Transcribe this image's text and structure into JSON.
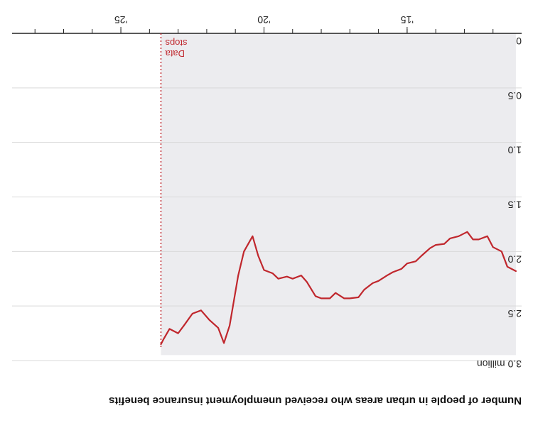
{
  "chart_data": {
    "type": "area",
    "orientation": "rotated-180",
    "title": "Number of people in urban areas who received unemployment insurance benefits",
    "ylabel": "",
    "xlabel": "",
    "y_unit_label": "3.0 million",
    "y_ticks": [
      "0",
      "0.5",
      "1.0",
      "1.5",
      "2.0",
      "2.5"
    ],
    "ylim": [
      0,
      3.0
    ],
    "x_ticks": [
      {
        "label": "'15",
        "year": 2015
      },
      {
        "label": "'20",
        "year": 2020
      },
      {
        "label": "'25",
        "year": 2025
      }
    ],
    "xlim": [
      2011.0,
      2028.8
    ],
    "grid": true,
    "shaded_region": {
      "from": 2011.2,
      "to": 2023.6
    },
    "data_stop": {
      "year": 2023.6,
      "label": "Data stops"
    },
    "series": [
      {
        "values": [
          [
            2011.2,
            2.18
          ],
          [
            2011.5,
            2.14
          ],
          [
            2011.7,
            2.0
          ],
          [
            2012.0,
            1.96
          ],
          [
            2012.2,
            1.86
          ],
          [
            2012.5,
            1.89
          ],
          [
            2012.7,
            1.89
          ],
          [
            2012.9,
            1.82
          ],
          [
            2013.2,
            1.86
          ],
          [
            2013.5,
            1.88
          ],
          [
            2013.7,
            1.93
          ],
          [
            2014.0,
            1.94
          ],
          [
            2014.2,
            1.97
          ],
          [
            2014.5,
            2.04
          ],
          [
            2014.7,
            2.09
          ],
          [
            2015.0,
            2.11
          ],
          [
            2015.2,
            2.16
          ],
          [
            2015.5,
            2.19
          ],
          [
            2015.7,
            2.22
          ],
          [
            2016.0,
            2.27
          ],
          [
            2016.2,
            2.29
          ],
          [
            2016.5,
            2.35
          ],
          [
            2016.7,
            2.42
          ],
          [
            2017.0,
            2.43
          ],
          [
            2017.2,
            2.43
          ],
          [
            2017.5,
            2.38
          ],
          [
            2017.7,
            2.43
          ],
          [
            2018.0,
            2.43
          ],
          [
            2018.2,
            2.41
          ],
          [
            2018.5,
            2.28
          ],
          [
            2018.7,
            2.22
          ],
          [
            2019.0,
            2.25
          ],
          [
            2019.2,
            2.23
          ],
          [
            2019.5,
            2.25
          ],
          [
            2019.7,
            2.2
          ],
          [
            2020.0,
            2.17
          ],
          [
            2020.2,
            2.04
          ],
          [
            2020.4,
            1.86
          ],
          [
            2020.7,
            2.0
          ],
          [
            2020.9,
            2.22
          ],
          [
            2021.2,
            2.68
          ],
          [
            2021.4,
            2.84
          ],
          [
            2021.6,
            2.7
          ],
          [
            2021.9,
            2.63
          ],
          [
            2022.2,
            2.54
          ],
          [
            2022.5,
            2.57
          ],
          [
            2022.8,
            2.68
          ],
          [
            2023.0,
            2.75
          ],
          [
            2023.3,
            2.71
          ],
          [
            2023.5,
            2.8
          ],
          [
            2023.6,
            2.85
          ]
        ]
      }
    ],
    "colors": {
      "line": "#c0272d",
      "marker": "#c0272d",
      "shade": "#ececef",
      "grid": "#d9d9d9",
      "axis": "#222222"
    }
  }
}
